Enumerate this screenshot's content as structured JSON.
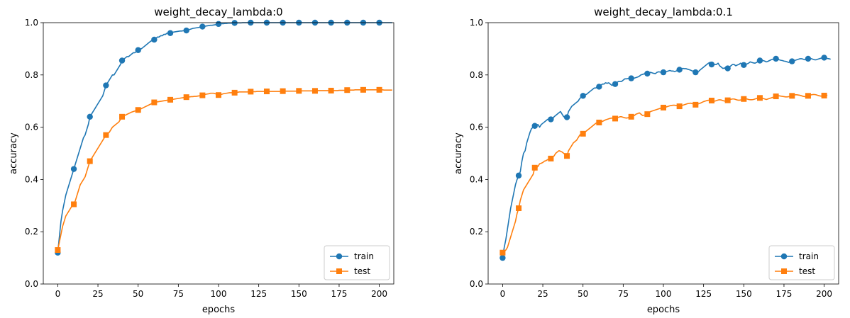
{
  "chart_data": [
    {
      "type": "line",
      "title": "weight_decay_lambda:0",
      "xlabel": "epochs",
      "ylabel": "accuracy",
      "xlim": [
        -9,
        209
      ],
      "ylim": [
        0,
        1.0
      ],
      "xticks": [
        0,
        25,
        50,
        75,
        100,
        125,
        150,
        175,
        200
      ],
      "yticks": [
        0.0,
        0.2,
        0.4,
        0.6,
        0.8,
        1.0
      ],
      "ytick_labels": [
        "0.0",
        "0.2",
        "0.4",
        "0.6",
        "0.8",
        "1.0"
      ],
      "grid": false,
      "legend_position": "lower-right",
      "markevery": 10,
      "series": [
        {
          "name": "train",
          "color": "#1f77b4",
          "marker": "circle",
          "values": [
            0.12,
            0.18,
            0.24,
            0.28,
            0.31,
            0.34,
            0.36,
            0.38,
            0.4,
            0.42,
            0.44,
            0.46,
            0.48,
            0.5,
            0.52,
            0.54,
            0.56,
            0.57,
            0.59,
            0.61,
            0.64,
            0.65,
            0.66,
            0.67,
            0.68,
            0.69,
            0.7,
            0.71,
            0.72,
            0.74,
            0.76,
            0.77,
            0.78,
            0.79,
            0.8,
            0.8,
            0.81,
            0.82,
            0.83,
            0.84,
            0.855,
            0.86,
            0.865,
            0.87,
            0.87,
            0.875,
            0.88,
            0.885,
            0.885,
            0.89,
            0.895,
            0.9,
            0.9,
            0.905,
            0.91,
            0.915,
            0.92,
            0.925,
            0.93,
            0.93,
            0.935,
            0.94,
            0.945,
            0.945,
            0.95,
            0.95,
            0.955,
            0.955,
            0.96,
            0.96,
            0.96,
            0.962,
            0.964,
            0.965,
            0.966,
            0.967,
            0.968,
            0.968,
            0.969,
            0.97,
            0.97,
            0.972,
            0.974,
            0.976,
            0.978,
            0.979,
            0.98,
            0.981,
            0.982,
            0.983,
            0.985,
            0.986,
            0.987,
            0.988,
            0.989,
            0.99,
            0.99,
            0.991,
            0.992,
            0.993,
            0.995,
            0.995,
            0.996,
            0.996,
            0.997,
            0.997,
            0.998,
            0.998,
            0.998,
            0.999,
            0.999,
            0.999,
            0.999,
            0.999,
            0.999,
            1.0,
            1.0,
            1.0,
            1.0,
            1.0,
            1.0,
            1.0,
            1.0,
            1.0,
            1.0,
            1.0,
            1.0,
            1.0,
            1.0,
            1.0,
            1.0,
            1.0,
            1.0,
            1.0,
            1.0,
            1.0,
            1.0,
            1.0,
            1.0,
            1.0,
            1.0,
            1.0,
            1.0,
            1.0,
            1.0,
            1.0,
            1.0,
            1.0,
            1.0,
            1.0,
            1.0,
            1.0,
            1.0,
            1.0,
            1.0,
            1.0,
            1.0,
            1.0,
            1.0,
            1.0,
            1.0,
            1.0,
            1.0,
            1.0,
            1.0,
            1.0,
            1.0,
            1.0,
            1.0,
            1.0,
            1.0,
            1.0,
            1.0,
            1.0,
            1.0,
            1.0,
            1.0,
            1.0,
            1.0,
            1.0,
            1.0,
            1.0,
            1.0,
            1.0,
            1.0,
            1.0,
            1.0,
            1.0,
            1.0,
            1.0,
            1.0,
            1.0,
            1.0,
            1.0,
            1.0,
            1.0,
            1.0,
            1.0,
            1.0,
            1.0,
            1.0,
            1.0,
            1.0,
            1.0,
            1.0,
            1.0,
            1.0,
            1.0,
            1.0
          ]
        },
        {
          "name": "test",
          "color": "#ff7f0e",
          "marker": "square",
          "values": [
            0.13,
            0.16,
            0.19,
            0.22,
            0.24,
            0.26,
            0.27,
            0.28,
            0.29,
            0.3,
            0.305,
            0.32,
            0.34,
            0.36,
            0.38,
            0.39,
            0.4,
            0.41,
            0.43,
            0.45,
            0.47,
            0.48,
            0.49,
            0.5,
            0.51,
            0.52,
            0.53,
            0.54,
            0.55,
            0.56,
            0.57,
            0.575,
            0.58,
            0.59,
            0.6,
            0.605,
            0.61,
            0.615,
            0.62,
            0.63,
            0.64,
            0.643,
            0.646,
            0.649,
            0.652,
            0.655,
            0.658,
            0.66,
            0.662,
            0.664,
            0.666,
            0.668,
            0.671,
            0.674,
            0.677,
            0.68,
            0.683,
            0.686,
            0.689,
            0.692,
            0.695,
            0.696,
            0.697,
            0.698,
            0.699,
            0.7,
            0.701,
            0.702,
            0.703,
            0.704,
            0.705,
            0.706,
            0.707,
            0.708,
            0.709,
            0.71,
            0.711,
            0.712,
            0.713,
            0.714,
            0.715,
            0.716,
            0.716,
            0.717,
            0.717,
            0.718,
            0.718,
            0.719,
            0.72,
            0.72,
            0.722,
            0.724,
            0.726,
            0.727,
            0.728,
            0.73,
            0.73,
            0.73,
            0.728,
            0.726,
            0.723,
            0.724,
            0.726,
            0.728,
            0.729,
            0.73,
            0.731,
            0.732,
            0.732,
            0.732,
            0.732,
            0.733,
            0.734,
            0.735,
            0.735,
            0.735,
            0.735,
            0.735,
            0.735,
            0.736,
            0.736,
            0.736,
            0.736,
            0.736,
            0.737,
            0.737,
            0.737,
            0.737,
            0.737,
            0.737,
            0.737,
            0.737,
            0.737,
            0.737,
            0.737,
            0.737,
            0.737,
            0.737,
            0.737,
            0.737,
            0.738,
            0.738,
            0.738,
            0.738,
            0.738,
            0.738,
            0.738,
            0.738,
            0.738,
            0.738,
            0.739,
            0.739,
            0.739,
            0.739,
            0.739,
            0.739,
            0.739,
            0.739,
            0.739,
            0.739,
            0.739,
            0.739,
            0.74,
            0.74,
            0.74,
            0.74,
            0.74,
            0.74,
            0.74,
            0.74,
            0.74,
            0.74,
            0.74,
            0.74,
            0.74,
            0.741,
            0.741,
            0.741,
            0.741,
            0.741,
            0.742,
            0.742,
            0.742,
            0.742,
            0.742,
            0.743,
            0.743,
            0.743,
            0.743,
            0.743,
            0.743,
            0.743,
            0.743,
            0.743,
            0.743,
            0.743,
            0.743,
            0.743,
            0.743,
            0.743,
            0.743,
            0.743,
            0.743,
            0.742,
            0.742,
            0.742,
            0.742,
            0.742,
            0.742
          ]
        }
      ]
    },
    {
      "type": "line",
      "title": "weight_decay_lambda:0.1",
      "xlabel": "epochs",
      "ylabel": "accuracy",
      "xlim": [
        -9,
        209
      ],
      "ylim": [
        0,
        1.0
      ],
      "xticks": [
        0,
        25,
        50,
        75,
        100,
        125,
        150,
        175,
        200
      ],
      "yticks": [
        0.0,
        0.2,
        0.4,
        0.6,
        0.8,
        1.0
      ],
      "ytick_labels": [
        "0.0",
        "0.2",
        "0.4",
        "0.6",
        "0.8",
        "1.0"
      ],
      "grid": false,
      "legend_position": "lower-right",
      "markevery": 10,
      "series": [
        {
          "name": "train",
          "color": "#1f77b4",
          "marker": "circle",
          "values": [
            0.1,
            0.14,
            0.17,
            0.21,
            0.25,
            0.29,
            0.32,
            0.35,
            0.38,
            0.4,
            0.415,
            0.43,
            0.47,
            0.5,
            0.51,
            0.54,
            0.56,
            0.58,
            0.595,
            0.6,
            0.605,
            0.61,
            0.61,
            0.6,
            0.61,
            0.615,
            0.62,
            0.625,
            0.63,
            0.628,
            0.63,
            0.63,
            0.64,
            0.645,
            0.65,
            0.655,
            0.66,
            0.65,
            0.64,
            0.64,
            0.638,
            0.66,
            0.67,
            0.68,
            0.685,
            0.69,
            0.695,
            0.7,
            0.71,
            0.715,
            0.72,
            0.725,
            0.725,
            0.73,
            0.735,
            0.74,
            0.745,
            0.75,
            0.75,
            0.755,
            0.755,
            0.76,
            0.765,
            0.765,
            0.77,
            0.768,
            0.77,
            0.765,
            0.76,
            0.765,
            0.765,
            0.77,
            0.775,
            0.775,
            0.775,
            0.78,
            0.785,
            0.785,
            0.786,
            0.787,
            0.787,
            0.785,
            0.788,
            0.79,
            0.792,
            0.795,
            0.8,
            0.802,
            0.804,
            0.805,
            0.805,
            0.807,
            0.81,
            0.808,
            0.806,
            0.805,
            0.81,
            0.812,
            0.811,
            0.81,
            0.81,
            0.812,
            0.813,
            0.815,
            0.817,
            0.815,
            0.815,
            0.813,
            0.815,
            0.818,
            0.82,
            0.822,
            0.825,
            0.824,
            0.824,
            0.822,
            0.82,
            0.818,
            0.815,
            0.815,
            0.81,
            0.812,
            0.814,
            0.82,
            0.825,
            0.83,
            0.835,
            0.84,
            0.845,
            0.848,
            0.84,
            0.84,
            0.84,
            0.84,
            0.845,
            0.835,
            0.83,
            0.825,
            0.826,
            0.83,
            0.825,
            0.83,
            0.835,
            0.84,
            0.84,
            0.835,
            0.838,
            0.84,
            0.845,
            0.84,
            0.838,
            0.84,
            0.842,
            0.845,
            0.85,
            0.848,
            0.846,
            0.845,
            0.848,
            0.852,
            0.855,
            0.855,
            0.855,
            0.853,
            0.85,
            0.852,
            0.855,
            0.858,
            0.86,
            0.86,
            0.862,
            0.86,
            0.858,
            0.856,
            0.855,
            0.853,
            0.852,
            0.85,
            0.848,
            0.85,
            0.852,
            0.855,
            0.856,
            0.858,
            0.86,
            0.862,
            0.862,
            0.86,
            0.858,
            0.86,
            0.862,
            0.864,
            0.862,
            0.86,
            0.858,
            0.858,
            0.86,
            0.862,
            0.864,
            0.866,
            0.866,
            0.865,
            0.863,
            0.862,
            0.86
          ]
        },
        {
          "name": "test",
          "color": "#ff7f0e",
          "marker": "square",
          "values": [
            0.12,
            0.125,
            0.13,
            0.14,
            0.16,
            0.18,
            0.2,
            0.22,
            0.24,
            0.27,
            0.29,
            0.32,
            0.34,
            0.36,
            0.37,
            0.38,
            0.39,
            0.4,
            0.41,
            0.42,
            0.445,
            0.445,
            0.45,
            0.46,
            0.462,
            0.465,
            0.47,
            0.472,
            0.476,
            0.478,
            0.48,
            0.485,
            0.49,
            0.5,
            0.505,
            0.51,
            0.508,
            0.505,
            0.5,
            0.495,
            0.49,
            0.51,
            0.52,
            0.53,
            0.54,
            0.545,
            0.55,
            0.56,
            0.57,
            0.575,
            0.575,
            0.58,
            0.585,
            0.59,
            0.595,
            0.6,
            0.605,
            0.61,
            0.615,
            0.618,
            0.618,
            0.62,
            0.622,
            0.625,
            0.628,
            0.63,
            0.632,
            0.634,
            0.635,
            0.634,
            0.633,
            0.635,
            0.638,
            0.64,
            0.64,
            0.638,
            0.636,
            0.635,
            0.636,
            0.638,
            0.64,
            0.642,
            0.645,
            0.65,
            0.652,
            0.655,
            0.65,
            0.645,
            0.646,
            0.648,
            0.65,
            0.655,
            0.66,
            0.662,
            0.664,
            0.666,
            0.668,
            0.67,
            0.672,
            0.674,
            0.675,
            0.676,
            0.678,
            0.68,
            0.682,
            0.683,
            0.684,
            0.684,
            0.683,
            0.682,
            0.68,
            0.682,
            0.684,
            0.686,
            0.688,
            0.69,
            0.691,
            0.692,
            0.69,
            0.688,
            0.686,
            0.688,
            0.69,
            0.692,
            0.695,
            0.698,
            0.7,
            0.702,
            0.703,
            0.703,
            0.702,
            0.7,
            0.7,
            0.702,
            0.704,
            0.705,
            0.704,
            0.702,
            0.7,
            0.701,
            0.703,
            0.705,
            0.707,
            0.708,
            0.708,
            0.706,
            0.704,
            0.703,
            0.704,
            0.706,
            0.708,
            0.709,
            0.708,
            0.706,
            0.705,
            0.705,
            0.706,
            0.708,
            0.71,
            0.712,
            0.712,
            0.712,
            0.71,
            0.708,
            0.706,
            0.708,
            0.71,
            0.712,
            0.714,
            0.716,
            0.718,
            0.72,
            0.72,
            0.719,
            0.718,
            0.717,
            0.716,
            0.716,
            0.717,
            0.718,
            0.72,
            0.722,
            0.724,
            0.724,
            0.723,
            0.722,
            0.72,
            0.718,
            0.717,
            0.718,
            0.72,
            0.722,
            0.724,
            0.725,
            0.725,
            0.724,
            0.722,
            0.72,
            0.719,
            0.72,
            0.721,
            0.722,
            0.722
          ]
        }
      ]
    }
  ]
}
